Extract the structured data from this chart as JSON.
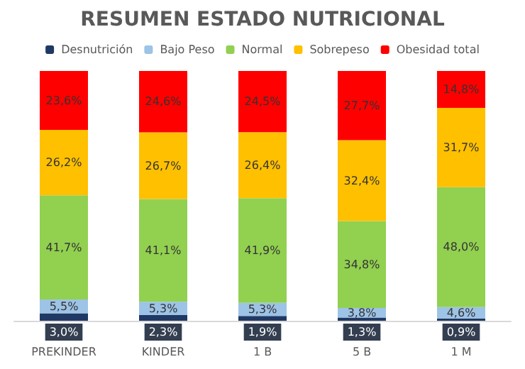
{
  "chart_data": {
    "type": "bar",
    "title": "RESUMEN ESTADO NUTRICIONAL",
    "stacked": true,
    "legend": "top",
    "tick_labels": "x",
    "categories": [
      "PREKINDER",
      "KINDER",
      "1 B",
      "5 B",
      "1 M"
    ],
    "series": [
      {
        "name": "Desnutrición",
        "color": "#203864",
        "values": [
          3.0,
          2.3,
          1.9,
          1.3,
          0.9
        ],
        "value_labels": [
          "3,0%",
          "2,3%",
          "1,9%",
          "1,3%",
          "0,9%"
        ]
      },
      {
        "name": "Bajo Peso",
        "color": "#9dc3e6",
        "values": [
          5.5,
          5.3,
          5.3,
          3.8,
          4.6
        ],
        "value_labels": [
          "5,5%",
          "5,3%",
          "5,3%",
          "3,8%",
          "4,6%"
        ]
      },
      {
        "name": "Normal",
        "color": "#92d050",
        "values": [
          41.7,
          41.1,
          41.9,
          34.8,
          48.0
        ],
        "value_labels": [
          "41,7%",
          "41,1%",
          "41,9%",
          "34,8%",
          "48,0%"
        ]
      },
      {
        "name": "Sobrepeso",
        "color": "#ffc000",
        "values": [
          26.2,
          26.7,
          26.4,
          32.4,
          31.7
        ],
        "value_labels": [
          "26,2%",
          "26,7%",
          "26,4%",
          "32,4%",
          "31,7%"
        ]
      },
      {
        "name": "Obesidad total",
        "color": "#ff0000",
        "values": [
          23.6,
          24.6,
          24.5,
          27.7,
          14.8
        ],
        "value_labels": [
          "23,6%",
          "24,6%",
          "24,5%",
          "27,7%",
          "14,8%"
        ]
      }
    ]
  }
}
